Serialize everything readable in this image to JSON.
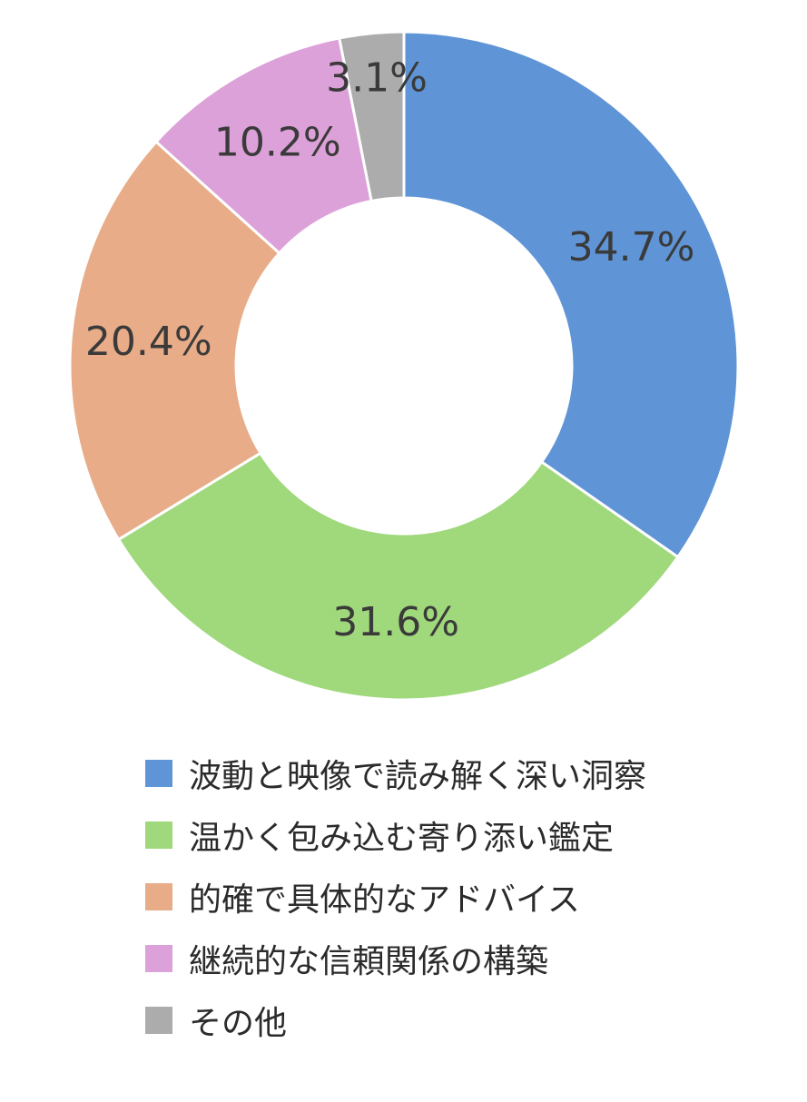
{
  "chart_data": {
    "type": "pie",
    "subtype": "donut",
    "title": "",
    "legend_position": "bottom",
    "categories": [
      "波動と映像で読み解く深い洞察",
      "温かく包み込む寄り添い鑑定",
      "的確で具体的なアドバイス",
      "継続的な信頼関係の構築",
      "その他"
    ],
    "values": [
      34.7,
      31.6,
      20.4,
      10.2,
      3.1
    ],
    "labels": [
      "34.7%",
      "31.6%",
      "20.4%",
      "10.2%",
      "3.1%"
    ],
    "colors": [
      "#5f94d6",
      "#a0d87c",
      "#e8ac88",
      "#dca1d9",
      "#acacac"
    ],
    "start_angle": "12 o'clock",
    "direction": "clockwise"
  }
}
